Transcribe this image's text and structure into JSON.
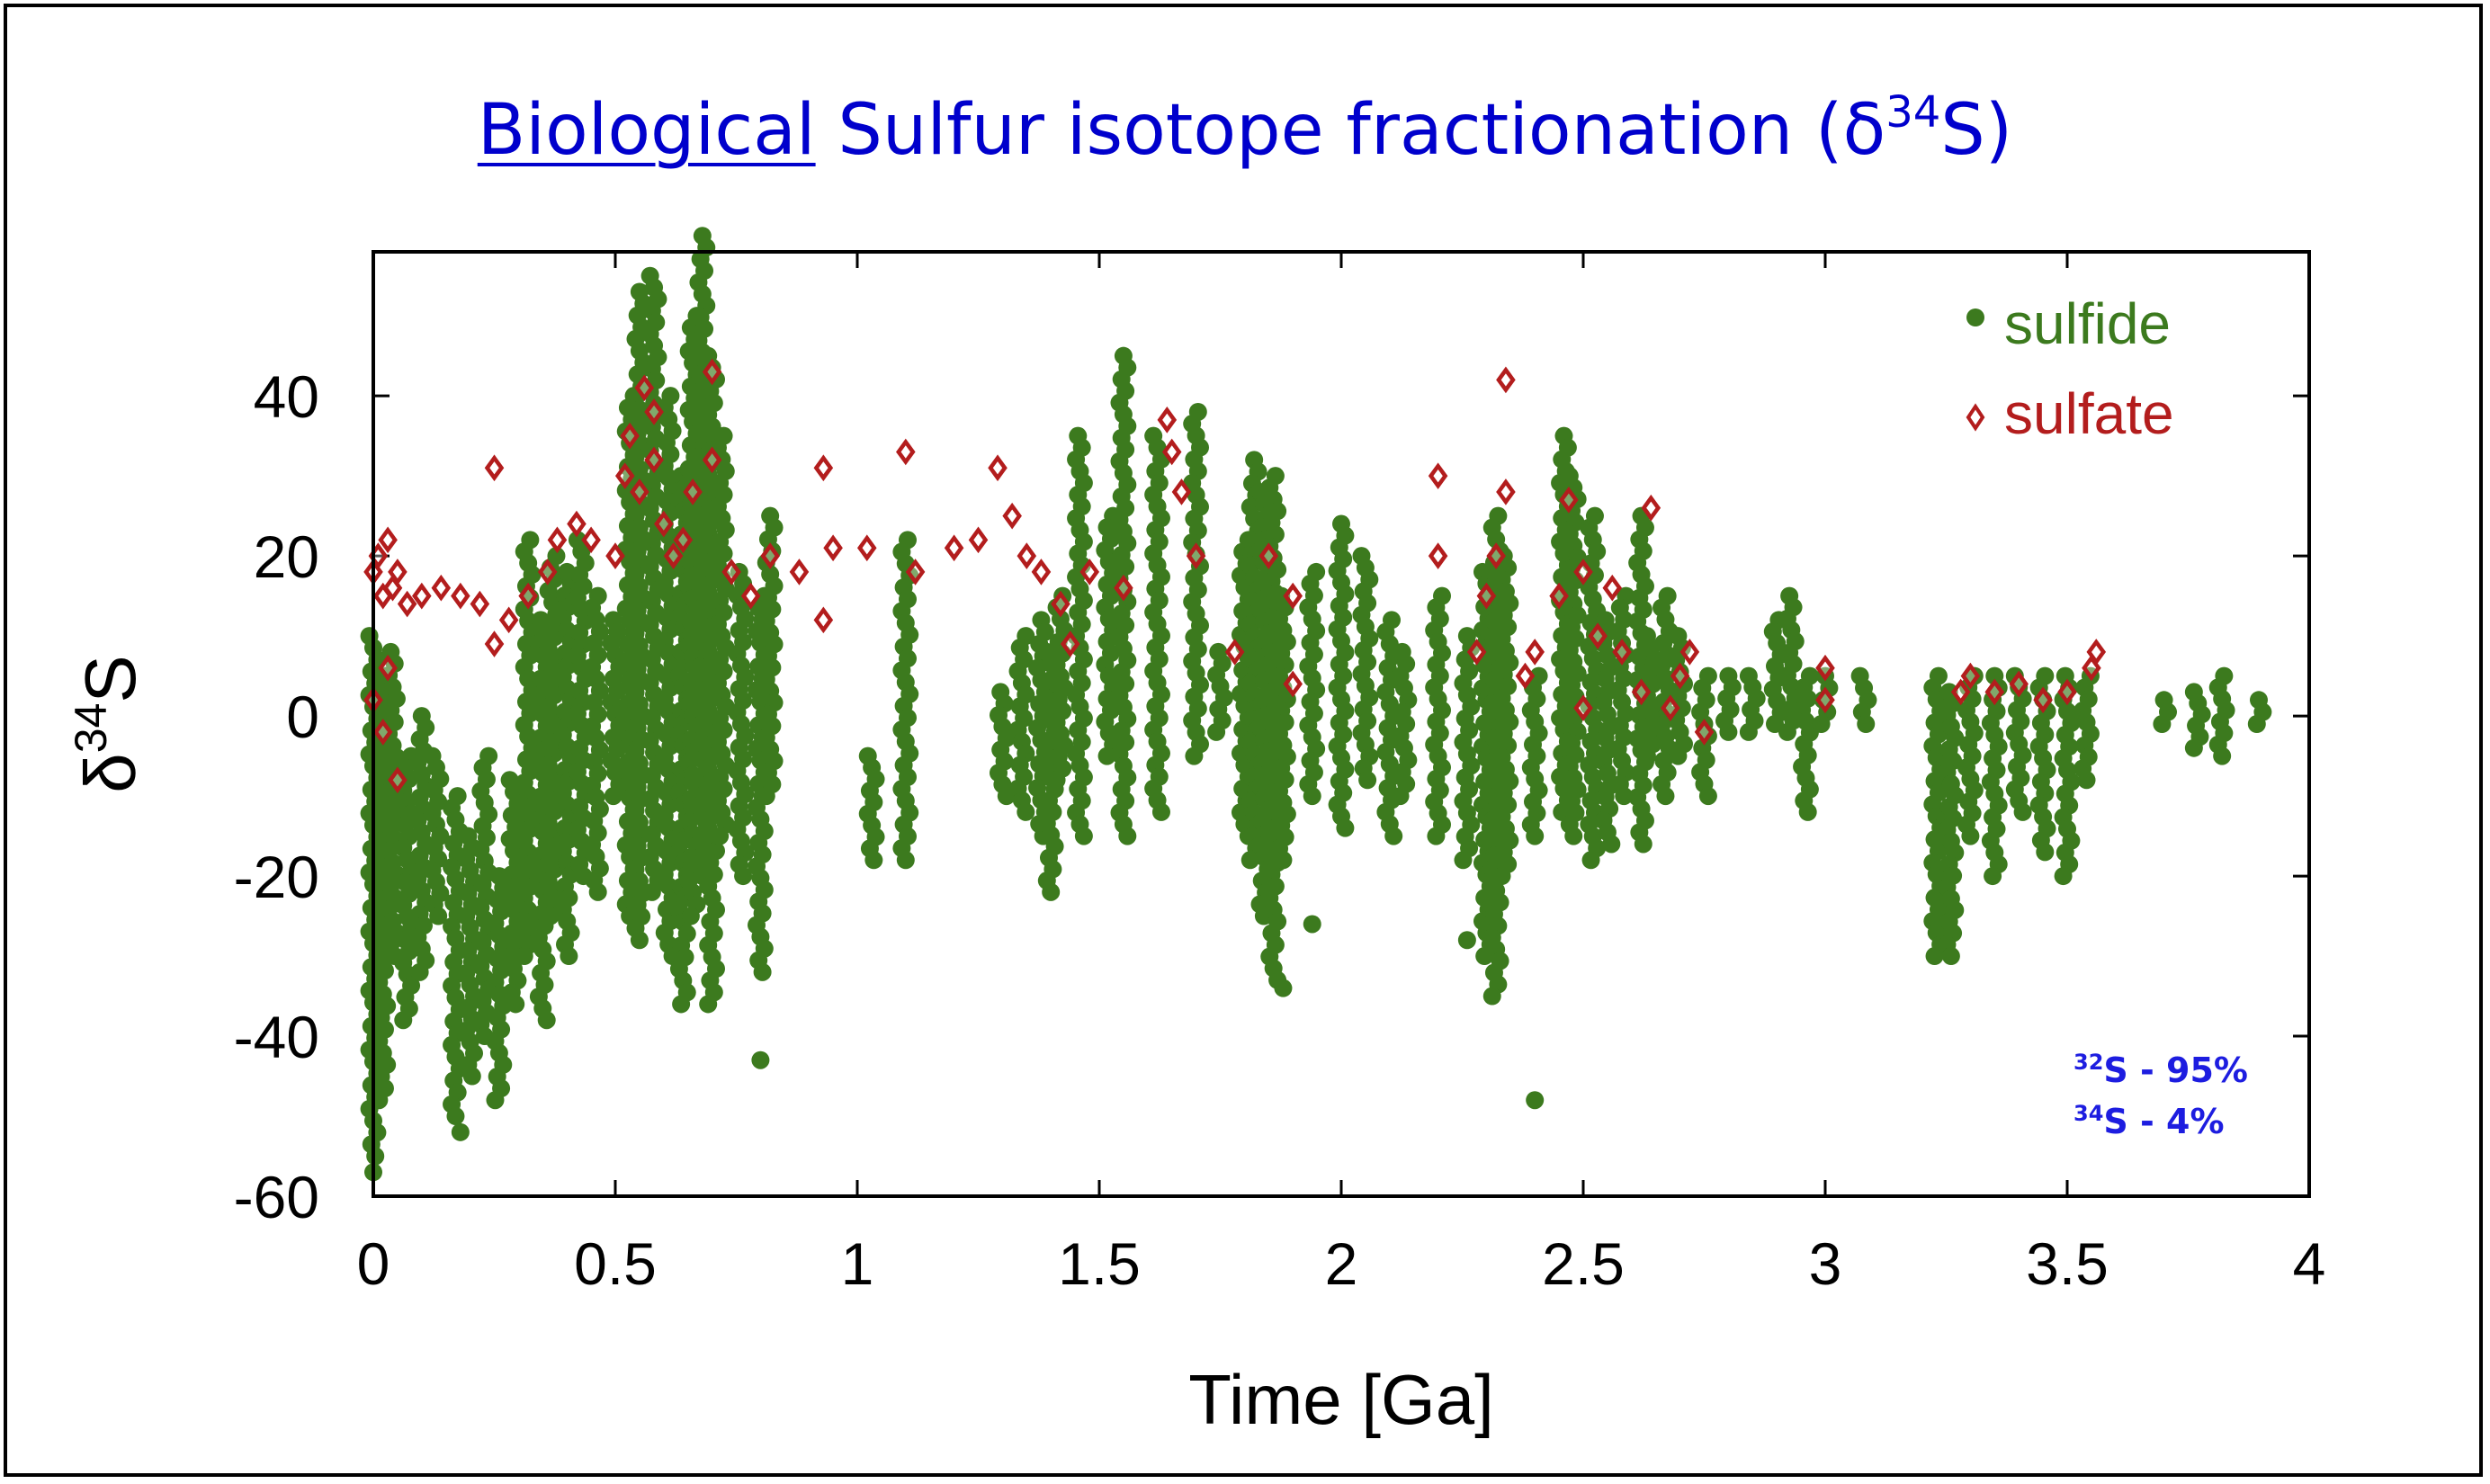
{
  "title": {
    "underlined": "Biological",
    "rest": " Sulfur isotope fractionation  (δ",
    "sup": "34",
    "end": "S)"
  },
  "isotopes": [
    {
      "mass": "32",
      "text": "S - 95%"
    },
    {
      "mass": "34",
      "text": "S - 4%"
    }
  ],
  "chart_data": {
    "type": "scatter",
    "xlabel": "Time [Ga]",
    "ylabel": "δ34S",
    "ylabel_base": "δ",
    "ylabel_sup": "34",
    "ylabel_end": "S",
    "xlim": [
      0,
      4
    ],
    "ylim": [
      -60,
      58
    ],
    "xticks": [
      {
        "v": 0,
        "label": "0"
      },
      {
        "v": 0.5,
        "label": "0.5"
      },
      {
        "v": 1,
        "label": "1"
      },
      {
        "v": 1.5,
        "label": "1.5"
      },
      {
        "v": 2,
        "label": "2"
      },
      {
        "v": 2.5,
        "label": "2.5"
      },
      {
        "v": 3,
        "label": "3"
      },
      {
        "v": 3.5,
        "label": "3.5"
      },
      {
        "v": 4,
        "label": "4"
      }
    ],
    "yticks": [
      {
        "v": 40,
        "label": "40"
      },
      {
        "v": 20,
        "label": "20"
      },
      {
        "v": 0,
        "label": "0"
      },
      {
        "v": -20,
        "label": "-20"
      },
      {
        "v": -40,
        "label": "-40"
      },
      {
        "v": -60,
        "label": "-60"
      }
    ],
    "legend_position": "top-right",
    "series": [
      {
        "name": "sulfide",
        "marker": "filled-circle",
        "color": "#3c7a1e",
        "columns": [
          [
            0.0,
            -55,
            10
          ],
          [
            0.02,
            -48,
            5
          ],
          [
            0.04,
            -30,
            8
          ],
          [
            0.07,
            -38,
            -5
          ],
          [
            0.1,
            -32,
            0
          ],
          [
            0.13,
            -25,
            -5
          ],
          [
            0.17,
            -50,
            -10
          ],
          [
            0.2,
            -45,
            -15
          ],
          [
            0.23,
            -40,
            -5
          ],
          [
            0.26,
            -48,
            -20
          ],
          [
            0.29,
            -36,
            -8
          ],
          [
            0.32,
            -30,
            22
          ],
          [
            0.35,
            -38,
            12
          ],
          [
            0.37,
            -25,
            20
          ],
          [
            0.4,
            -30,
            18
          ],
          [
            0.43,
            -20,
            22
          ],
          [
            0.46,
            -22,
            15
          ],
          [
            0.5,
            -10,
            12
          ],
          [
            0.53,
            -25,
            40
          ],
          [
            0.55,
            -28,
            53
          ],
          [
            0.58,
            -22,
            55
          ],
          [
            0.61,
            -30,
            40
          ],
          [
            0.64,
            -36,
            30
          ],
          [
            0.66,
            -25,
            50
          ],
          [
            0.68,
            -20,
            60
          ],
          [
            0.7,
            -36,
            45
          ],
          [
            0.72,
            -15,
            35
          ],
          [
            0.76,
            -20,
            18
          ],
          [
            0.8,
            -32,
            15
          ],
          [
            0.82,
            -10,
            25
          ],
          [
            1.03,
            -18,
            -5
          ],
          [
            1.1,
            -18,
            22
          ],
          [
            1.3,
            -10,
            3
          ],
          [
            1.34,
            -12,
            10
          ],
          [
            1.38,
            -15,
            12
          ],
          [
            1.4,
            -22,
            8
          ],
          [
            1.42,
            -8,
            15
          ],
          [
            1.46,
            -15,
            35
          ],
          [
            1.52,
            -5,
            25
          ],
          [
            1.55,
            -15,
            45
          ],
          [
            1.62,
            -12,
            35
          ],
          [
            1.7,
            -5,
            38
          ],
          [
            1.75,
            -2,
            8
          ],
          [
            1.8,
            -15,
            22
          ],
          [
            1.82,
            -18,
            32
          ],
          [
            1.84,
            -25,
            28
          ],
          [
            1.86,
            -33,
            30
          ],
          [
            1.88,
            -18,
            15
          ],
          [
            1.94,
            -10,
            18
          ],
          [
            2.0,
            -14,
            24
          ],
          [
            2.05,
            -8,
            20
          ],
          [
            2.1,
            -15,
            12
          ],
          [
            2.13,
            -10,
            8
          ],
          [
            2.2,
            -15,
            15
          ],
          [
            2.26,
            -18,
            10
          ],
          [
            2.3,
            -30,
            18
          ],
          [
            2.32,
            -35,
            25
          ],
          [
            2.34,
            -20,
            20
          ],
          [
            2.4,
            -15,
            5
          ],
          [
            2.46,
            -12,
            35
          ],
          [
            2.48,
            -15,
            30
          ],
          [
            2.52,
            -18,
            25
          ],
          [
            2.55,
            -16,
            12
          ],
          [
            2.58,
            -10,
            15
          ],
          [
            2.62,
            -16,
            25
          ],
          [
            2.64,
            -5,
            10
          ],
          [
            2.67,
            -10,
            15
          ],
          [
            2.7,
            -5,
            10
          ],
          [
            2.75,
            -10,
            5
          ],
          [
            2.8,
            -2,
            5
          ],
          [
            2.85,
            -2,
            5
          ],
          [
            2.9,
            -1,
            12
          ],
          [
            2.93,
            -2,
            15
          ],
          [
            2.96,
            -12,
            5
          ],
          [
            3.0,
            -1,
            5
          ],
          [
            3.08,
            -1,
            5
          ],
          [
            3.23,
            -30,
            5
          ],
          [
            3.26,
            -30,
            3
          ],
          [
            3.3,
            -15,
            5
          ],
          [
            3.35,
            -20,
            5
          ],
          [
            3.4,
            -12,
            5
          ],
          [
            3.45,
            -17,
            5
          ],
          [
            3.5,
            -20,
            5
          ],
          [
            3.54,
            -8,
            5
          ],
          [
            3.7,
            -1,
            2
          ],
          [
            3.77,
            -4,
            3
          ],
          [
            3.82,
            -5,
            5
          ],
          [
            3.9,
            -1,
            2
          ]
        ],
        "points": [
          [
            2.4,
            -48
          ],
          [
            0.8,
            -43
          ],
          [
            0.18,
            -52
          ],
          [
            1.88,
            -34
          ],
          [
            2.26,
            -28
          ],
          [
            1.94,
            -26
          ],
          [
            0.0,
            -57
          ]
        ]
      },
      {
        "name": "sulfate",
        "marker": "open-diamond",
        "color": "#b31d1d",
        "points": [
          [
            0.0,
            18
          ],
          [
            0.01,
            20
          ],
          [
            0.02,
            15
          ],
          [
            0.03,
            22
          ],
          [
            0.04,
            16
          ],
          [
            0.05,
            18
          ],
          [
            0.0,
            2
          ],
          [
            0.02,
            -2
          ],
          [
            0.03,
            6
          ],
          [
            0.05,
            -8
          ],
          [
            0.07,
            14
          ],
          [
            0.1,
            15
          ],
          [
            0.14,
            16
          ],
          [
            0.18,
            15
          ],
          [
            0.22,
            14
          ],
          [
            0.25,
            31
          ],
          [
            0.25,
            9
          ],
          [
            0.28,
            12
          ],
          [
            0.32,
            15
          ],
          [
            0.36,
            18
          ],
          [
            0.38,
            22
          ],
          [
            0.42,
            24
          ],
          [
            0.45,
            22
          ],
          [
            0.5,
            20
          ],
          [
            0.52,
            30
          ],
          [
            0.53,
            35
          ],
          [
            0.55,
            28
          ],
          [
            0.56,
            41
          ],
          [
            0.58,
            38
          ],
          [
            0.58,
            32
          ],
          [
            0.6,
            24
          ],
          [
            0.62,
            20
          ],
          [
            0.64,
            22
          ],
          [
            0.66,
            28
          ],
          [
            0.7,
            43
          ],
          [
            0.7,
            32
          ],
          [
            0.74,
            18
          ],
          [
            0.78,
            15
          ],
          [
            0.82,
            20
          ],
          [
            0.88,
            18
          ],
          [
            0.93,
            31
          ],
          [
            0.95,
            21
          ],
          [
            0.93,
            12
          ],
          [
            1.02,
            21
          ],
          [
            1.1,
            33
          ],
          [
            1.12,
            18
          ],
          [
            1.2,
            21
          ],
          [
            1.25,
            22
          ],
          [
            1.29,
            31
          ],
          [
            1.32,
            25
          ],
          [
            1.35,
            20
          ],
          [
            1.38,
            18
          ],
          [
            1.42,
            14
          ],
          [
            1.44,
            9
          ],
          [
            1.48,
            18
          ],
          [
            1.55,
            16
          ],
          [
            1.64,
            37
          ],
          [
            1.65,
            33
          ],
          [
            1.67,
            28
          ],
          [
            1.7,
            20
          ],
          [
            1.78,
            8
          ],
          [
            1.85,
            20
          ],
          [
            1.9,
            15
          ],
          [
            1.9,
            4
          ],
          [
            2.2,
            30
          ],
          [
            2.2,
            20
          ],
          [
            2.28,
            8
          ],
          [
            2.3,
            15
          ],
          [
            2.34,
            42
          ],
          [
            2.34,
            28
          ],
          [
            2.32,
            20
          ],
          [
            2.38,
            5
          ],
          [
            2.4,
            8
          ],
          [
            2.45,
            15
          ],
          [
            2.47,
            27
          ],
          [
            2.5,
            18
          ],
          [
            2.5,
            1
          ],
          [
            2.53,
            10
          ],
          [
            2.56,
            16
          ],
          [
            2.58,
            8
          ],
          [
            2.62,
            3
          ],
          [
            2.64,
            26
          ],
          [
            2.68,
            1
          ],
          [
            2.7,
            5
          ],
          [
            2.72,
            8
          ],
          [
            2.75,
            -2
          ],
          [
            3.0,
            6
          ],
          [
            3.0,
            2
          ],
          [
            3.28,
            3
          ],
          [
            3.3,
            5
          ],
          [
            3.35,
            3
          ],
          [
            3.4,
            4
          ],
          [
            3.45,
            2
          ],
          [
            3.5,
            3
          ],
          [
            3.55,
            6
          ],
          [
            3.56,
            8
          ]
        ]
      }
    ]
  }
}
